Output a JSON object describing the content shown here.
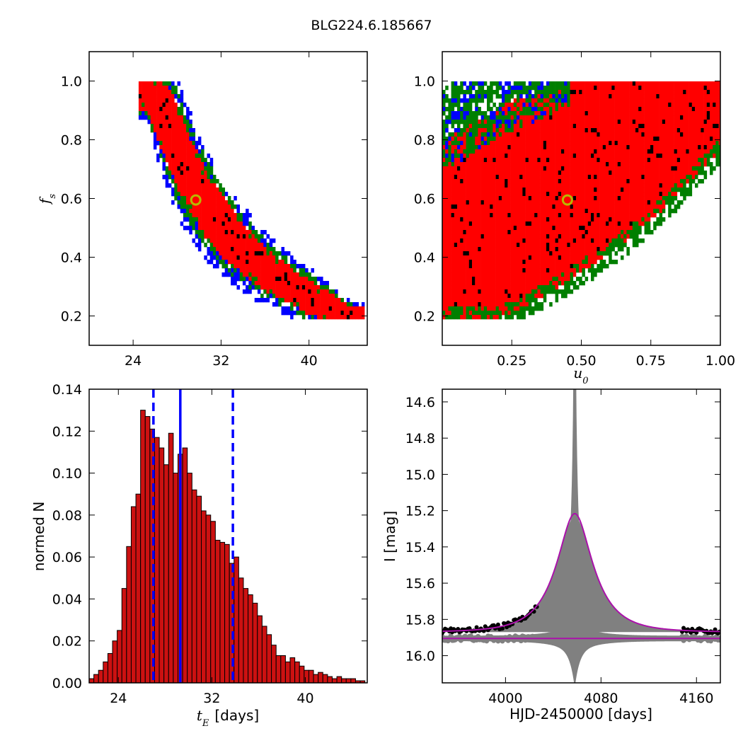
{
  "title": "BLG224.6.185667",
  "colors": {
    "sigma1": "#000000",
    "sigma2": "#ff0000",
    "sigma3": "#007f00",
    "sigma4": "#0000ff",
    "marker_edge": "#b8b800",
    "hist_fill": "#cc1111",
    "median_line": "#0000ff",
    "model_line": "#aa11aa",
    "band": "#808080"
  },
  "chart_data": [
    {
      "id": "fs_vs_tE",
      "type": "heatmap",
      "xlabel": "",
      "ylabel": "f_s",
      "xlim": [
        20,
        45.3
      ],
      "ylim": [
        0.1,
        1.1
      ],
      "xticks": [
        24,
        32,
        40
      ],
      "yticks": [
        0.2,
        0.4,
        0.6,
        0.8,
        1.0
      ],
      "marker": {
        "x": 29.7,
        "y": 0.595
      },
      "ridge": [
        {
          "x": 25.2,
          "lo": 0.92,
          "hi": 1.0
        },
        {
          "x": 26.0,
          "lo": 0.82,
          "hi": 1.0
        },
        {
          "x": 27.0,
          "lo": 0.72,
          "hi": 1.0
        },
        {
          "x": 28.0,
          "lo": 0.63,
          "hi": 0.92
        },
        {
          "x": 29.0,
          "lo": 0.56,
          "hi": 0.82
        },
        {
          "x": 30.0,
          "lo": 0.5,
          "hi": 0.74
        },
        {
          "x": 31.0,
          "lo": 0.45,
          "hi": 0.67
        },
        {
          "x": 32.0,
          "lo": 0.41,
          "hi": 0.61
        },
        {
          "x": 33.0,
          "lo": 0.38,
          "hi": 0.56
        },
        {
          "x": 34.0,
          "lo": 0.35,
          "hi": 0.51
        },
        {
          "x": 35.0,
          "lo": 0.32,
          "hi": 0.47
        },
        {
          "x": 36.0,
          "lo": 0.3,
          "hi": 0.43
        },
        {
          "x": 37.0,
          "lo": 0.28,
          "hi": 0.4
        },
        {
          "x": 38.0,
          "lo": 0.26,
          "hi": 0.37
        },
        {
          "x": 39.0,
          "lo": 0.24,
          "hi": 0.34
        },
        {
          "x": 40.0,
          "lo": 0.22,
          "hi": 0.32
        },
        {
          "x": 41.0,
          "lo": 0.21,
          "hi": 0.29
        },
        {
          "x": 42.0,
          "lo": 0.2,
          "hi": 0.27
        },
        {
          "x": 43.0,
          "lo": 0.2,
          "hi": 0.24
        },
        {
          "x": 44.0,
          "lo": 0.2,
          "hi": 0.22
        }
      ]
    },
    {
      "id": "fs_vs_u0",
      "type": "heatmap",
      "xlabel": "u_0",
      "ylabel": "",
      "xlim": [
        0.0,
        1.0
      ],
      "ylim": [
        0.1,
        1.1
      ],
      "xticks": [
        0.25,
        0.5,
        0.75,
        1.0
      ],
      "xticklabels": [
        "0.25",
        "0.50",
        "0.75",
        "1.00"
      ],
      "yticks": [
        0.2,
        0.4,
        0.6,
        0.8,
        1.0
      ],
      "marker": {
        "x": 0.45,
        "y": 0.595
      },
      "band": [
        {
          "x": 0.0,
          "lo": 0.2,
          "hi": 0.8
        },
        {
          "x": 0.1,
          "lo": 0.2,
          "hi": 0.86
        },
        {
          "x": 0.2,
          "lo": 0.2,
          "hi": 0.92
        },
        {
          "x": 0.3,
          "lo": 0.24,
          "hi": 0.96
        },
        {
          "x": 0.4,
          "lo": 0.3,
          "hi": 1.0
        },
        {
          "x": 0.5,
          "lo": 0.36,
          "hi": 1.0
        },
        {
          "x": 0.6,
          "lo": 0.42,
          "hi": 1.0
        },
        {
          "x": 0.7,
          "lo": 0.5,
          "hi": 1.0
        },
        {
          "x": 0.8,
          "lo": 0.58,
          "hi": 1.0
        },
        {
          "x": 0.9,
          "lo": 0.68,
          "hi": 1.0
        },
        {
          "x": 1.0,
          "lo": 0.78,
          "hi": 1.0
        }
      ]
    },
    {
      "id": "tE_histogram",
      "type": "bar",
      "xlabel": "t_E [days]",
      "xlabel_unit": "[days]",
      "ylabel": "normed N",
      "xlim": [
        21.5,
        45.3
      ],
      "ylim": [
        0.0,
        0.14
      ],
      "xticks": [
        24,
        32,
        40
      ],
      "yticks": [
        0.0,
        0.02,
        0.04,
        0.06,
        0.08,
        0.1,
        0.12,
        0.14
      ],
      "yticklabels": [
        "0.00",
        "0.02",
        "0.04",
        "0.06",
        "0.08",
        "0.10",
        "0.12",
        "0.14"
      ],
      "bin_start": 21.5,
      "bin_width": 0.4,
      "values": [
        0.002,
        0.004,
        0.006,
        0.01,
        0.014,
        0.02,
        0.025,
        0.045,
        0.065,
        0.084,
        0.09,
        0.13,
        0.127,
        0.121,
        0.117,
        0.112,
        0.104,
        0.119,
        0.1,
        0.109,
        0.112,
        0.1,
        0.092,
        0.089,
        0.082,
        0.08,
        0.077,
        0.068,
        0.067,
        0.066,
        0.057,
        0.06,
        0.05,
        0.045,
        0.042,
        0.038,
        0.032,
        0.027,
        0.023,
        0.018,
        0.013,
        0.013,
        0.01,
        0.012,
        0.01,
        0.008,
        0.006,
        0.006,
        0.004,
        0.005,
        0.004,
        0.003,
        0.002,
        0.003,
        0.002,
        0.002,
        0.002,
        0.001,
        0.001
      ],
      "median": 29.3,
      "lower": 27.0,
      "upper": 33.8
    },
    {
      "id": "lightcurve",
      "type": "line",
      "xlabel": "HJD-2450000 [days]",
      "ylabel": "I [mag]",
      "xlim": [
        3947,
        4180
      ],
      "ylim": [
        16.15,
        14.53
      ],
      "xticks": [
        4000,
        4080,
        4160
      ],
      "yticks": [
        14.6,
        14.8,
        15.0,
        15.2,
        15.4,
        15.6,
        15.8,
        16.0
      ],
      "model": {
        "t0": 4058,
        "tE": 29.3,
        "u0": 0.45,
        "fs": 0.595,
        "baseline": 15.87
      },
      "residual_baseline": 15.905,
      "data_segments": [
        {
          "from": 3947,
          "to": 4027
        },
        {
          "from": 4148,
          "to": 4180
        }
      ]
    }
  ]
}
